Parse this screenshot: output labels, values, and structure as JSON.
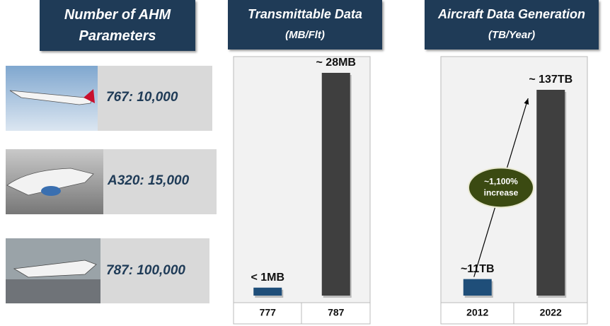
{
  "parameters": {
    "title": "Number of AHM Parameters",
    "items": [
      "767: 10,000",
      "A320: 15,000",
      "787: 100,000"
    ]
  },
  "chart_data": [
    {
      "type": "bar",
      "title": "Transmittable Data",
      "subtitle": "(MB/Flt)",
      "categories": [
        "777",
        "787"
      ],
      "values": [
        1,
        28
      ],
      "value_labels": [
        "< 1MB",
        "~ 28MB"
      ],
      "colors": [
        "#1f4e79",
        "#3f3f3f"
      ]
    },
    {
      "type": "bar",
      "title": "Aircraft Data Generation",
      "subtitle": "(TB/Year)",
      "categories": [
        "2012",
        "2022"
      ],
      "values": [
        11,
        137
      ],
      "value_labels": [
        "~11TB",
        "~ 137TB"
      ],
      "colors": [
        "#1f4e79",
        "#3f3f3f"
      ],
      "annotation": [
        "~1,100%",
        "increase"
      ]
    }
  ]
}
